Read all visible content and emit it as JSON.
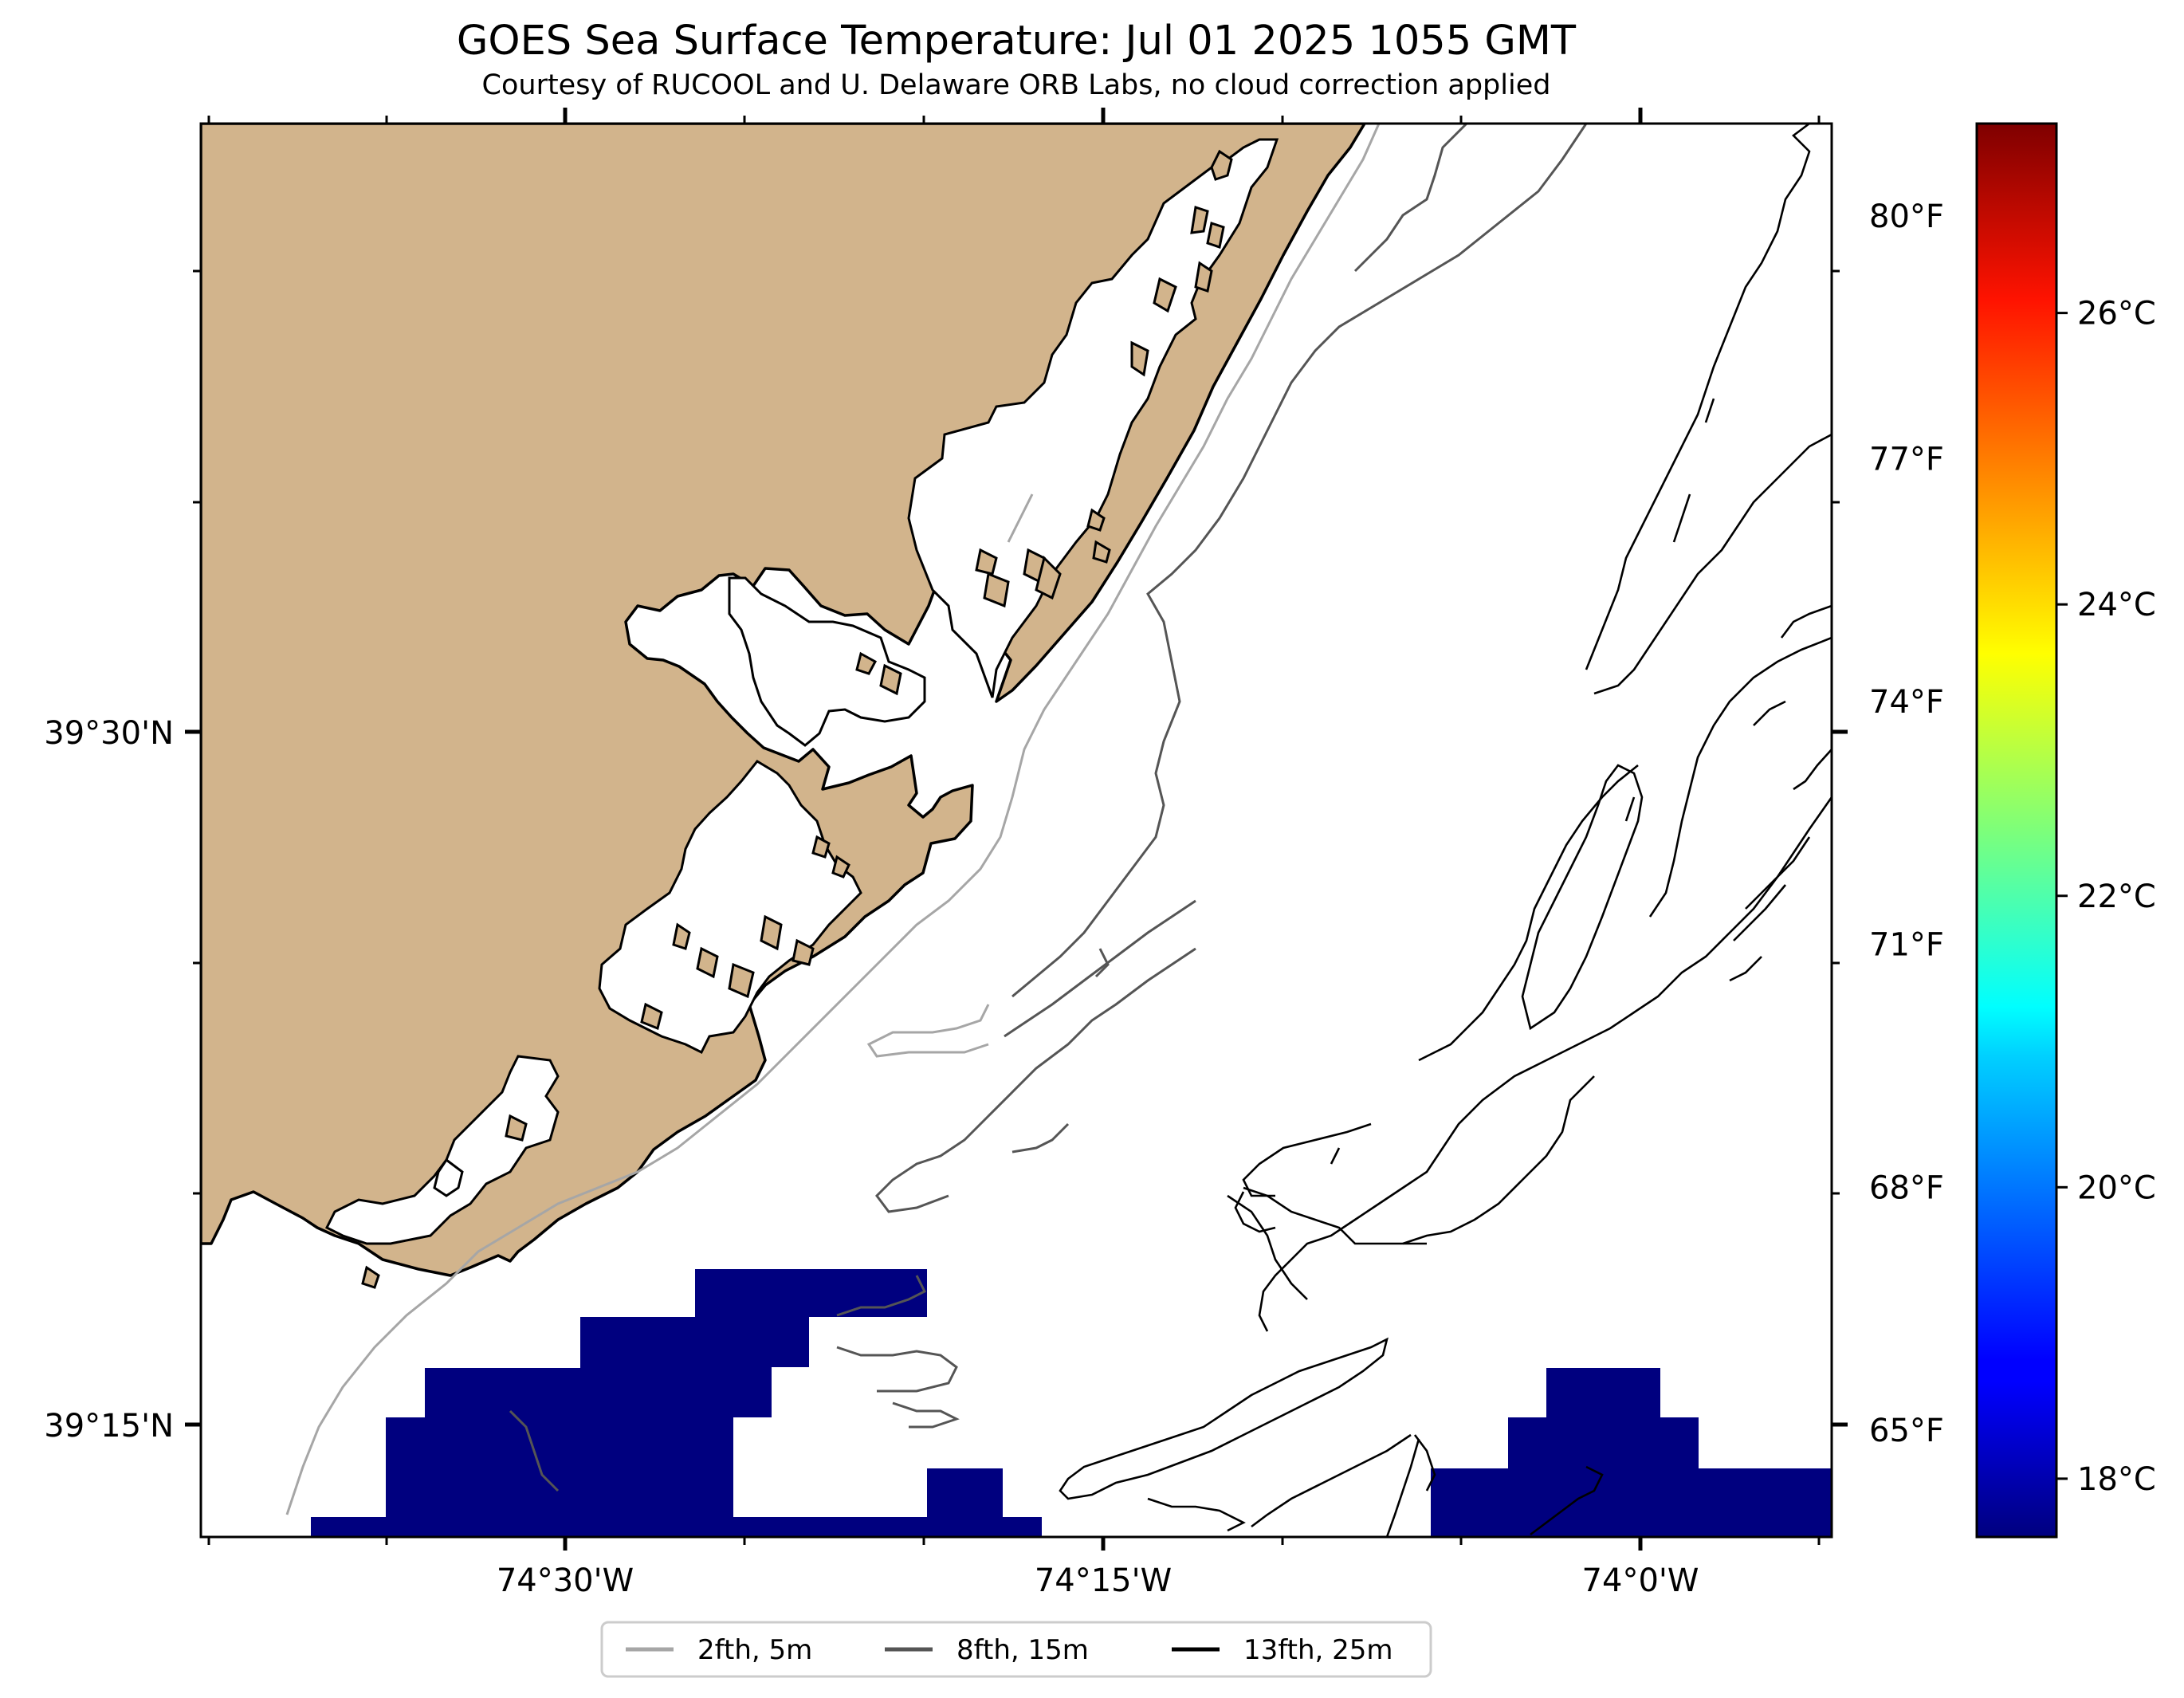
{
  "title": "GOES Sea Surface Temperature: Jul 01 2025 1055 GMT",
  "subtitle": "Courtesy of RUCOOL and U. Delaware ORB Labs, no cloud correction applied",
  "axes": {
    "lon_ticks": [
      {
        "value": -74.5,
        "label": "74°30'W"
      },
      {
        "value": -74.25,
        "label": "74°15'W"
      },
      {
        "value": -74.0,
        "label": "74°0'W"
      }
    ],
    "lat_ticks": [
      {
        "value": 39.5,
        "label": "39°30'N"
      },
      {
        "value": 39.25,
        "label": "39°15'N"
      }
    ]
  },
  "colorbar": {
    "colormap": "jet",
    "range_c": [
      17.6,
      27.3
    ],
    "celsius_ticks": [
      {
        "value": 18,
        "label": "18°C"
      },
      {
        "value": 20,
        "label": "20°C"
      },
      {
        "value": 22,
        "label": "22°C"
      },
      {
        "value": 24,
        "label": "24°C"
      },
      {
        "value": 26,
        "label": "26°C"
      }
    ],
    "fahrenheit_ticks": [
      {
        "value": 65,
        "label": "65°F"
      },
      {
        "value": 68,
        "label": "68°F"
      },
      {
        "value": 71,
        "label": "71°F"
      },
      {
        "value": 74,
        "label": "74°F"
      },
      {
        "value": 77,
        "label": "77°F"
      },
      {
        "value": 80,
        "label": "80°F"
      }
    ]
  },
  "legend": {
    "placement": "bottom-center",
    "items": [
      {
        "label": "2fth, 5m",
        "color": "#a6a6a6"
      },
      {
        "label": "8fth, 15m",
        "color": "#555555"
      },
      {
        "label": "13fth, 25m",
        "color": "#000000"
      }
    ]
  },
  "colors": {
    "land": "#d2b48c",
    "water": "#ffffff",
    "sst_cells": "#00007f",
    "coastline": "#000000"
  }
}
